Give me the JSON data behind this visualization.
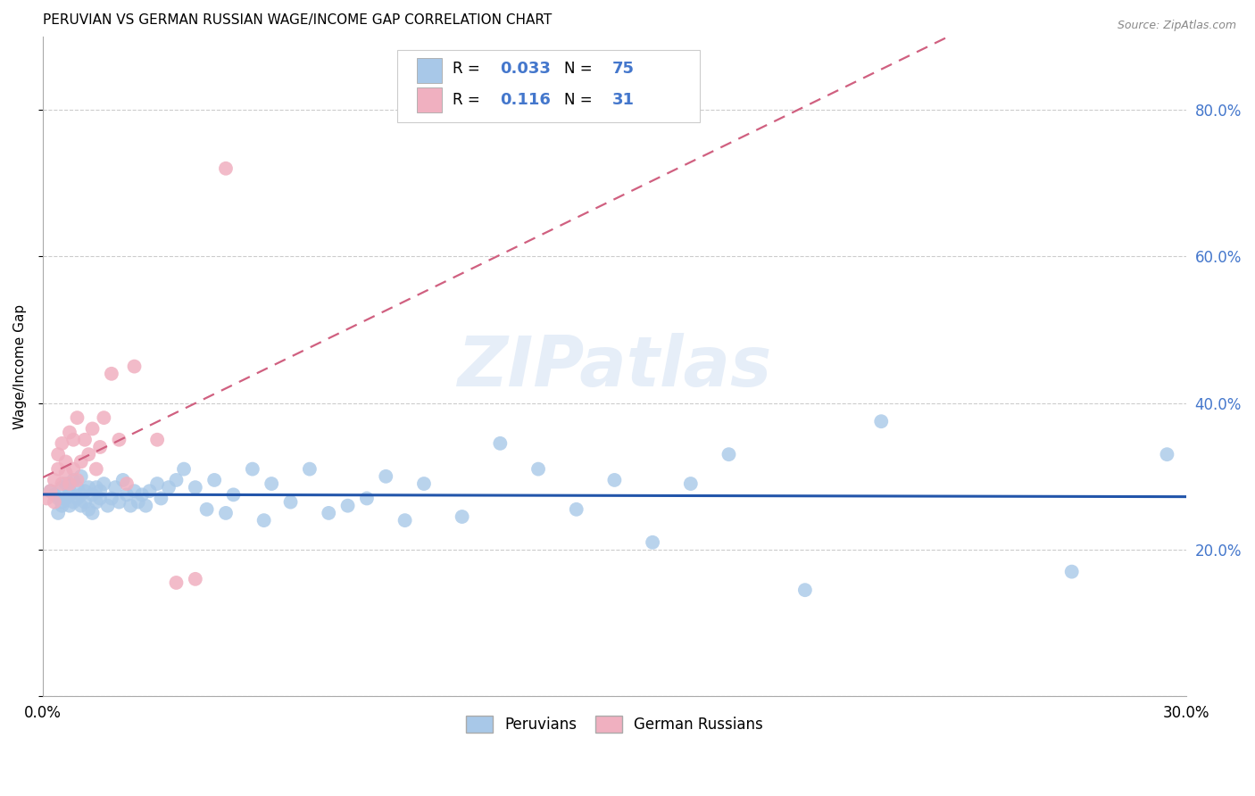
{
  "title": "PERUVIAN VS GERMAN RUSSIAN WAGE/INCOME GAP CORRELATION CHART",
  "source": "Source: ZipAtlas.com",
  "ylabel": "Wage/Income Gap",
  "xmin": 0.0,
  "xmax": 0.3,
  "ymin": 0.0,
  "ymax": 0.9,
  "yticks": [
    0.0,
    0.2,
    0.4,
    0.6,
    0.8
  ],
  "ytick_labels": [
    "",
    "20.0%",
    "40.0%",
    "60.0%",
    "80.0%"
  ],
  "grid_color": "#cccccc",
  "blue_color": "#a8c8e8",
  "pink_color": "#f0b0c0",
  "blue_line_color": "#2255aa",
  "pink_line_color": "#d06080",
  "blue_R": 0.033,
  "blue_N": 75,
  "pink_R": 0.116,
  "pink_N": 31,
  "watermark": "ZIPatlas",
  "legend_label_blue": "Peruvians",
  "legend_label_pink": "German Russians",
  "blue_x": [
    0.002,
    0.003,
    0.004,
    0.004,
    0.005,
    0.005,
    0.005,
    0.006,
    0.006,
    0.007,
    0.007,
    0.007,
    0.008,
    0.008,
    0.009,
    0.009,
    0.01,
    0.01,
    0.01,
    0.011,
    0.011,
    0.012,
    0.012,
    0.013,
    0.013,
    0.014,
    0.014,
    0.015,
    0.015,
    0.016,
    0.017,
    0.018,
    0.019,
    0.02,
    0.021,
    0.022,
    0.023,
    0.024,
    0.025,
    0.026,
    0.027,
    0.028,
    0.03,
    0.031,
    0.033,
    0.035,
    0.037,
    0.04,
    0.043,
    0.045,
    0.048,
    0.05,
    0.055,
    0.058,
    0.06,
    0.065,
    0.07,
    0.075,
    0.08,
    0.085,
    0.09,
    0.095,
    0.1,
    0.11,
    0.12,
    0.13,
    0.14,
    0.15,
    0.16,
    0.17,
    0.18,
    0.2,
    0.22,
    0.27,
    0.295
  ],
  "blue_y": [
    0.28,
    0.275,
    0.27,
    0.25,
    0.285,
    0.265,
    0.26,
    0.29,
    0.27,
    0.28,
    0.26,
    0.275,
    0.295,
    0.265,
    0.285,
    0.27,
    0.3,
    0.275,
    0.26,
    0.28,
    0.265,
    0.285,
    0.255,
    0.275,
    0.25,
    0.265,
    0.285,
    0.28,
    0.27,
    0.29,
    0.26,
    0.27,
    0.285,
    0.265,
    0.295,
    0.275,
    0.26,
    0.28,
    0.265,
    0.275,
    0.26,
    0.28,
    0.29,
    0.27,
    0.285,
    0.295,
    0.31,
    0.285,
    0.255,
    0.295,
    0.25,
    0.275,
    0.31,
    0.24,
    0.29,
    0.265,
    0.31,
    0.25,
    0.26,
    0.27,
    0.3,
    0.24,
    0.29,
    0.245,
    0.345,
    0.31,
    0.255,
    0.295,
    0.21,
    0.29,
    0.33,
    0.145,
    0.375,
    0.17,
    0.33
  ],
  "pink_x": [
    0.001,
    0.002,
    0.003,
    0.003,
    0.004,
    0.004,
    0.005,
    0.005,
    0.006,
    0.006,
    0.007,
    0.007,
    0.008,
    0.008,
    0.009,
    0.009,
    0.01,
    0.011,
    0.012,
    0.013,
    0.014,
    0.015,
    0.016,
    0.018,
    0.02,
    0.022,
    0.024,
    0.03,
    0.035,
    0.04,
    0.048
  ],
  "pink_y": [
    0.27,
    0.28,
    0.295,
    0.265,
    0.33,
    0.31,
    0.345,
    0.29,
    0.32,
    0.305,
    0.36,
    0.29,
    0.35,
    0.31,
    0.38,
    0.295,
    0.32,
    0.35,
    0.33,
    0.365,
    0.31,
    0.34,
    0.38,
    0.44,
    0.35,
    0.29,
    0.45,
    0.35,
    0.155,
    0.16,
    0.72
  ]
}
